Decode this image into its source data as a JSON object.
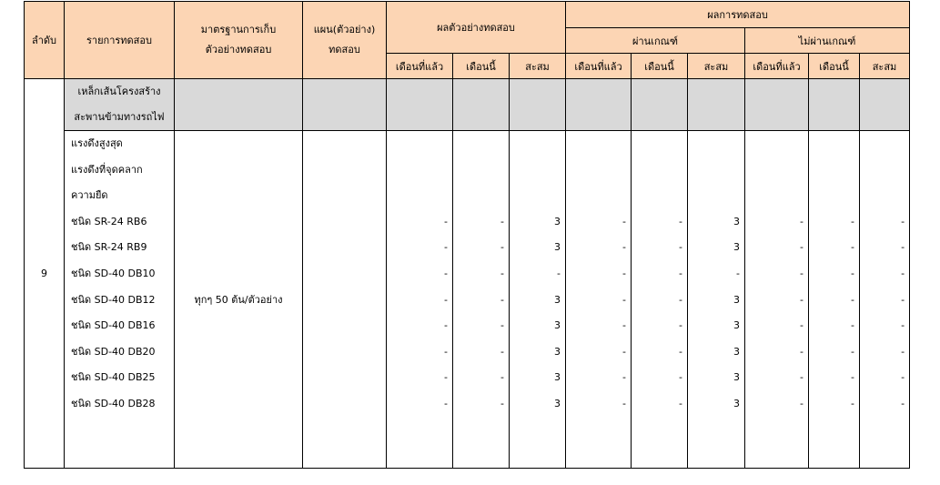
{
  "header": {
    "no": "ลำดับ",
    "item": "รายการทดสอบ",
    "standard": "มาตรฐานการเก็บ ตัวอย่างทดสอบ",
    "plan": "แผน(ตัวอย่าง) ทดสอบ",
    "sample_result": "ผลตัวอย่างทดสอบ",
    "test_result": "ผลการทดสอบ",
    "pass": "ผ่านเกณฑ์",
    "fail": "ไม่ผ่านเกณฑ์",
    "sub": [
      "เดือนที่แล้ว",
      "เดือนนี้",
      "สะสม"
    ]
  },
  "colors": {
    "header_bg": "#fcd5b4",
    "group_bg": "#d9d9d9"
  },
  "row": {
    "no": "9",
    "group": [
      "เหล็กเส้นโครงสร้าง",
      "สะพานข้ามทางรถไฟ"
    ],
    "standard": "ทุกๆ 50 ต้น/ตัวอย่าง",
    "items": [
      "แรงดึงสูงสุด",
      "แรงดึงที่จุดคลาก",
      "ความยืด",
      "ชนิด SR-24 RB6",
      "ชนิด SR-24 RB9",
      "ชนิด SD-40 DB10",
      "ชนิด SD-40 DB12",
      "ชนิด SD-40 DB16",
      "ชนิด SD-40 DB20",
      "ชนิด SD-40 DB25",
      "ชนิด SD-40 DB28"
    ],
    "values": [
      [
        "-",
        "-",
        "3",
        "-",
        "-",
        "3",
        "-",
        "-",
        "-"
      ],
      [
        "-",
        "-",
        "3",
        "-",
        "-",
        "3",
        "-",
        "-",
        "-"
      ],
      [
        "-",
        "-",
        "-",
        "-",
        "-",
        "-",
        "-",
        "-",
        "-"
      ],
      [
        "-",
        "-",
        "3",
        "-",
        "-",
        "3",
        "-",
        "-",
        "-"
      ],
      [
        "-",
        "-",
        "3",
        "-",
        "-",
        "3",
        "-",
        "-",
        "-"
      ],
      [
        "-",
        "-",
        "3",
        "-",
        "-",
        "3",
        "-",
        "-",
        "-"
      ],
      [
        "-",
        "-",
        "3",
        "-",
        "-",
        "3",
        "-",
        "-",
        "-"
      ],
      [
        "-",
        "-",
        "3",
        "-",
        "-",
        "3",
        "-",
        "-",
        "-"
      ]
    ]
  }
}
